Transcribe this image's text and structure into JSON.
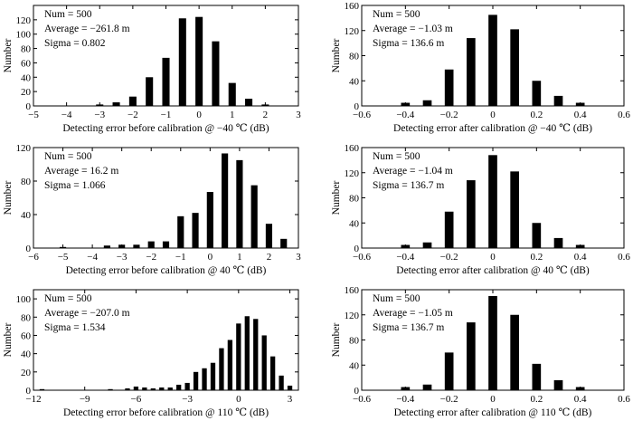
{
  "chart_data": [
    {
      "type": "bar",
      "id": "before-m40",
      "xlabel": "Detecting error before calibration @ −40 ℃ (dB)",
      "ylabel": "Number",
      "xlim": [
        -5,
        3
      ],
      "ylim": [
        0,
        140
      ],
      "xticks": [
        -5,
        -4,
        -3,
        -2,
        -1,
        0,
        1,
        2,
        3
      ],
      "xtick_labels": [
        "−5",
        "−4",
        "−3",
        "−2",
        "−1",
        "0",
        "1",
        "2",
        "3"
      ],
      "yticks": [
        0,
        20,
        40,
        60,
        80,
        100,
        120
      ],
      "bar_width": 0.22,
      "stats": [
        "Num = 500",
        "Average = −261.8 m",
        "Sigma = 0.802"
      ],
      "x": [
        -3.0,
        -2.5,
        -2.0,
        -1.5,
        -1.0,
        -0.5,
        0.0,
        0.5,
        1.0,
        1.5,
        2.0
      ],
      "values": [
        2,
        5,
        13,
        40,
        67,
        122,
        124,
        90,
        32,
        10,
        2
      ]
    },
    {
      "type": "bar",
      "id": "after-m40",
      "xlabel": "Detecting error after calibration @ −40 ℃ (dB)",
      "ylabel": "Number",
      "xlim": [
        -0.6,
        0.6
      ],
      "ylim": [
        0,
        160
      ],
      "xticks": [
        -0.6,
        -0.4,
        -0.2,
        0,
        0.2,
        0.4,
        0.6
      ],
      "xtick_labels": [
        "−0.6",
        "−0.4",
        "−0.2",
        "0",
        "0.2",
        "0.4",
        "0.6"
      ],
      "yticks": [
        0,
        40,
        80,
        120,
        160
      ],
      "bar_width": 0.04,
      "stats": [
        "Num = 500",
        "Average = −1.03 m",
        "Sigma = 136.6 m"
      ],
      "x": [
        -0.4,
        -0.3,
        -0.2,
        -0.1,
        0.0,
        0.1,
        0.2,
        0.3,
        0.4
      ],
      "values": [
        5,
        9,
        58,
        108,
        145,
        122,
        40,
        16,
        5
      ]
    },
    {
      "type": "bar",
      "id": "before-40",
      "xlabel": "Detecting error before calibration @ 40 ℃ (dB)",
      "ylabel": "Number",
      "xlim": [
        -6,
        3
      ],
      "ylim": [
        0,
        120
      ],
      "xticks": [
        -6,
        -5,
        -4,
        -3,
        -2,
        -1,
        0,
        1,
        2,
        3
      ],
      "xtick_labels": [
        "−6",
        "−5",
        "−4",
        "−3",
        "−2",
        "−1",
        "0",
        "1",
        "2",
        "3"
      ],
      "yticks": [
        0,
        40,
        80,
        120
      ],
      "bar_width": 0.22,
      "stats": [
        "Num = 500",
        "Average = 16.2 m",
        "Sigma = 1.066"
      ],
      "x": [
        -5.0,
        -3.5,
        -3.0,
        -2.5,
        -2.0,
        -1.5,
        -1.0,
        -0.5,
        0.0,
        0.5,
        1.0,
        1.5,
        2.0,
        2.5
      ],
      "values": [
        1,
        3,
        4,
        4,
        8,
        8,
        38,
        42,
        67,
        113,
        105,
        75,
        29,
        11
      ],
      "extra_x": [
        -4.0,
        -3.0,
        -2.0
      ],
      "extra_values": [
        0,
        0,
        0
      ]
    },
    {
      "type": "bar",
      "id": "after-40",
      "xlabel": "Detecting error after calibration @ 40 ℃ (dB)",
      "ylabel": "Number",
      "xlim": [
        -0.6,
        0.6
      ],
      "ylim": [
        0,
        160
      ],
      "xticks": [
        -0.6,
        -0.4,
        -0.2,
        0,
        0.2,
        0.4,
        0.6
      ],
      "xtick_labels": [
        "−0.6",
        "−0.4",
        "−0.2",
        "0",
        "0.2",
        "0.4",
        "0.6"
      ],
      "yticks": [
        0,
        40,
        80,
        120,
        160
      ],
      "bar_width": 0.04,
      "stats": [
        "Num = 500",
        "Average = −1.04 m",
        "Sigma = 136.7 m"
      ],
      "x": [
        -0.4,
        -0.3,
        -0.2,
        -0.1,
        0.0,
        0.1,
        0.2,
        0.3,
        0.4
      ],
      "values": [
        5,
        9,
        58,
        108,
        148,
        122,
        40,
        16,
        5
      ]
    },
    {
      "type": "bar",
      "id": "before-110",
      "xlabel": "Detecting error before calibration @ 110 ℃ (dB)",
      "ylabel": "Number",
      "xlim": [
        -12,
        3.5
      ],
      "ylim": [
        0,
        110
      ],
      "xticks": [
        -12,
        -9,
        -6,
        -3,
        0,
        3
      ],
      "xtick_labels": [
        "−12",
        "−9",
        "−6",
        "−3",
        "0",
        "3"
      ],
      "yticks": [
        0,
        20,
        40,
        60,
        80,
        100
      ],
      "bar_width": 0.28,
      "stats": [
        "Num = 500",
        "Average = −207.0 m",
        "Sigma = 1.534"
      ],
      "x": [
        -7.5,
        -6.5,
        -6.0,
        -5.5,
        -5.0,
        -4.5,
        -4.0,
        -3.5,
        -3.0,
        -2.5,
        -2.0,
        -1.5,
        -1.0,
        -0.5,
        0.0,
        0.5,
        1.0,
        1.5,
        2.0,
        2.5
      ],
      "values": [
        1,
        2,
        4,
        3,
        2,
        3,
        3,
        6,
        8,
        20,
        24,
        30,
        46,
        55,
        73,
        81,
        78,
        60,
        37,
        16
      ],
      "extra_x": [
        -11.5,
        3.0
      ],
      "extra_values": [
        1,
        5
      ]
    },
    {
      "type": "bar",
      "id": "after-110",
      "xlabel": "Detecting error after calibration @ 110 ℃ (dB)",
      "ylabel": "Number",
      "xlim": [
        -0.6,
        0.6
      ],
      "ylim": [
        0,
        160
      ],
      "xticks": [
        -0.6,
        -0.4,
        -0.2,
        0,
        0.2,
        0.4,
        0.6
      ],
      "xtick_labels": [
        "−0.6",
        "−0.4",
        "−0.2",
        "0",
        "0.2",
        "0.4",
        "0.6"
      ],
      "yticks": [
        0,
        40,
        80,
        120,
        160
      ],
      "bar_width": 0.04,
      "stats": [
        "Num = 500",
        "Average = −1.05 m",
        "Sigma = 136.7 m"
      ],
      "x": [
        -0.4,
        -0.3,
        -0.2,
        -0.1,
        0.0,
        0.1,
        0.2,
        0.3,
        0.4
      ],
      "values": [
        5,
        9,
        60,
        108,
        150,
        120,
        42,
        16,
        5
      ]
    }
  ]
}
